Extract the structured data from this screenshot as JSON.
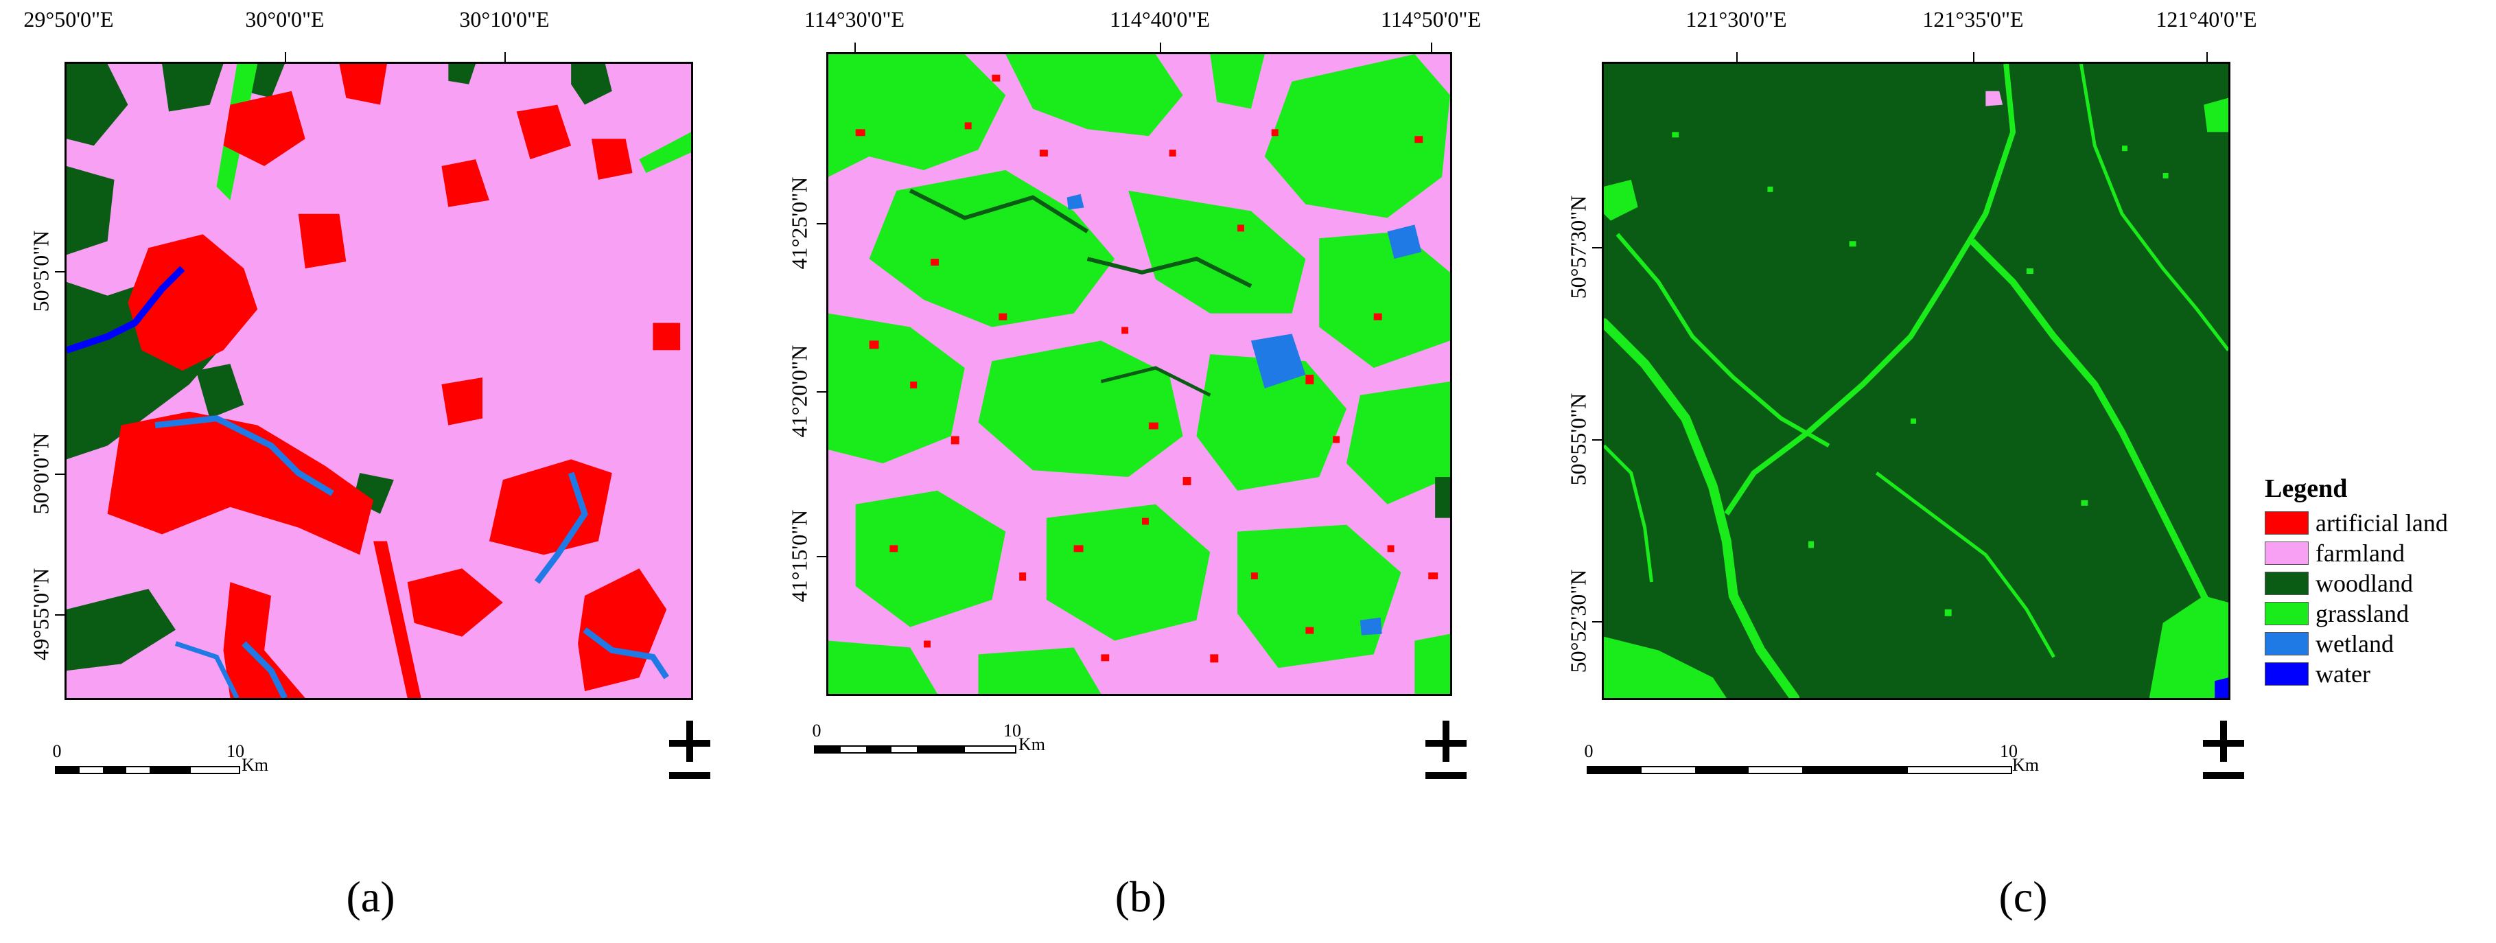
{
  "legend": {
    "title": "Legend",
    "classes": [
      {
        "label": "artificial land",
        "color": "#ff0000"
      },
      {
        "label": "farmland",
        "color": "#f7a0f4"
      },
      {
        "label": "woodland",
        "color": "#0a5c14"
      },
      {
        "label": "grassland",
        "color": "#1aeb1a"
      },
      {
        "label": "wetland",
        "color": "#1f7ae6"
      },
      {
        "label": "water",
        "color": "#0000ff"
      }
    ]
  },
  "panels": [
    {
      "caption": "(a)",
      "lon_labels": [
        "29°50'0\"E",
        "30°0'0\"E",
        "30°10'0\"E"
      ],
      "lat_labels": [
        "50°5'0\"N",
        "50°0'0\"N",
        "49°55'0\"N"
      ],
      "scale": {
        "start": "0",
        "mid": "10",
        "unit": "Km"
      },
      "base_class": "farmland"
    },
    {
      "caption": "(b)",
      "lon_labels": [
        "114°30'0\"E",
        "114°40'0\"E",
        "114°50'0\"E"
      ],
      "lat_labels": [
        "41°25'0\"N",
        "41°20'0\"N",
        "41°15'0\"N"
      ],
      "scale": {
        "start": "0",
        "mid": "10",
        "unit": "Km"
      },
      "base_class": "farmland"
    },
    {
      "caption": "(c)",
      "lon_labels": [
        "121°30'0\"E",
        "121°35'0\"E",
        "121°40'0\"E"
      ],
      "lat_labels": [
        "50°57'30\"N",
        "50°55'0\"N",
        "50°52'30\"N"
      ],
      "scale": {
        "start": "0",
        "mid": "10",
        "unit": "Km"
      },
      "base_class": "woodland"
    }
  ]
}
